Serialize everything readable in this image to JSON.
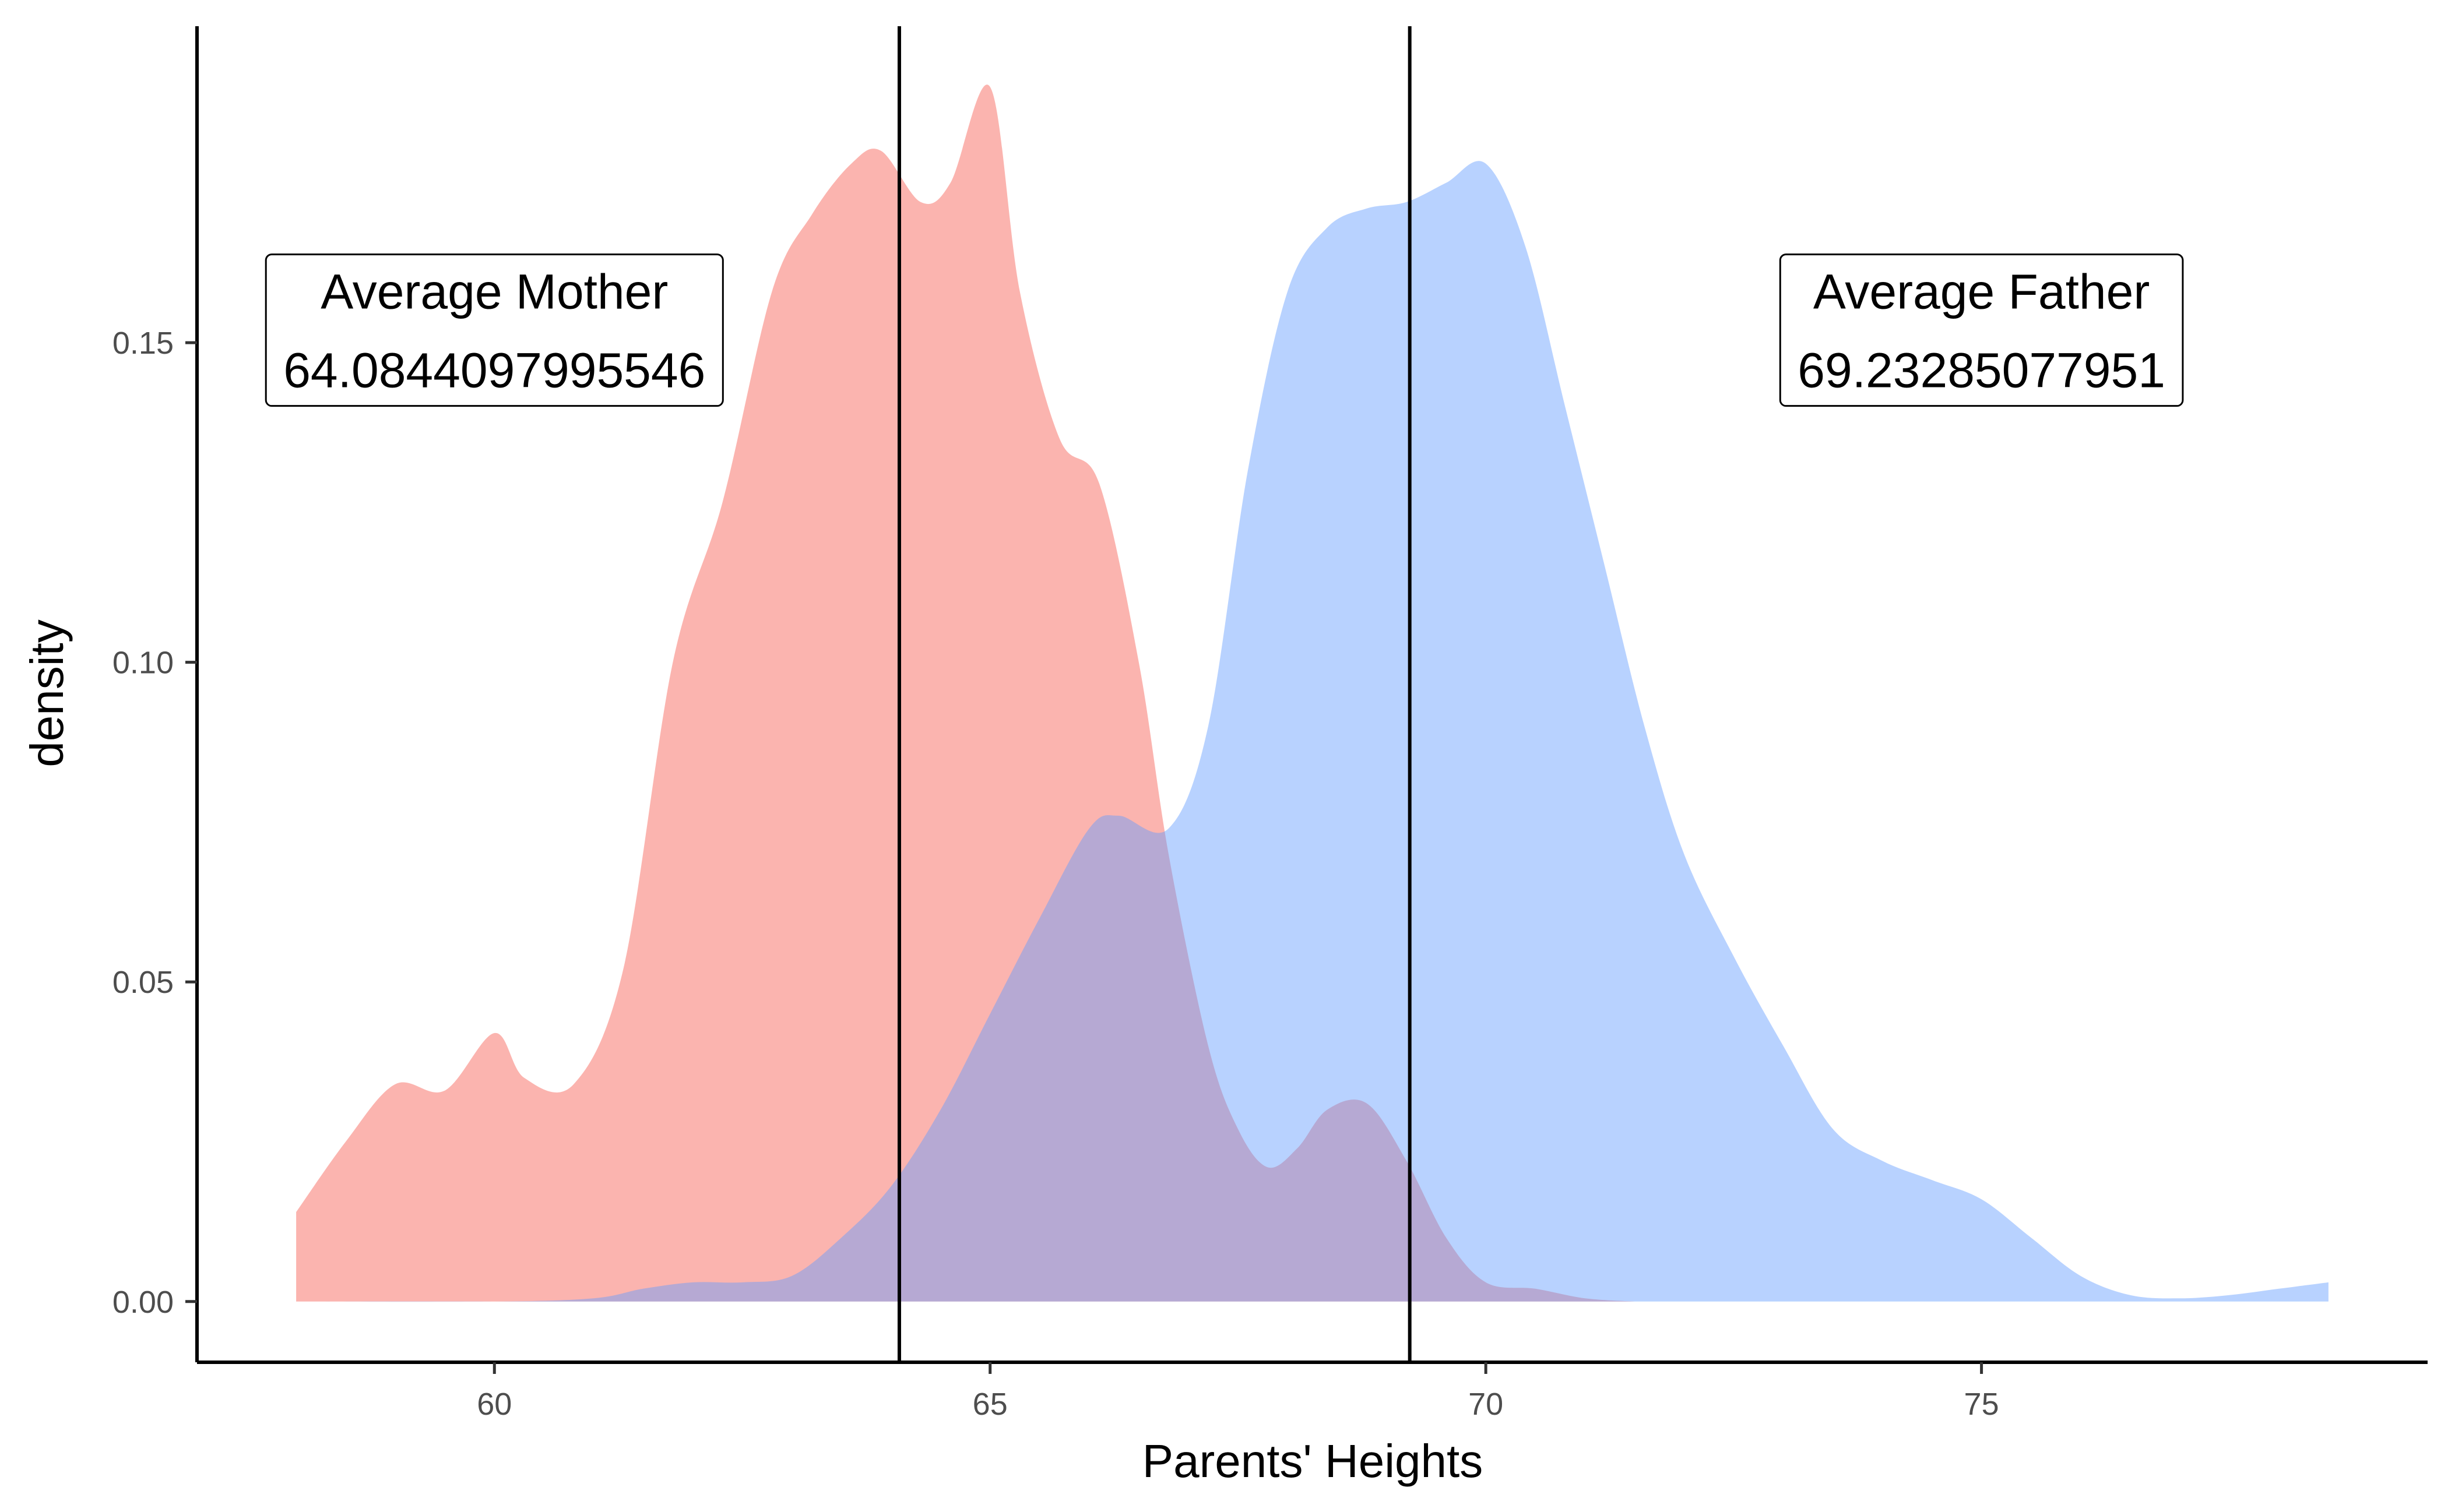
{
  "chart_data": {
    "type": "area",
    "title": "",
    "xlabel": "Parents' Heights",
    "ylabel": "density",
    "xlim": [
      57,
      79.5
    ],
    "ylim": [
      -0.0095,
      0.1995
    ],
    "x_ticks": [
      60,
      65,
      70,
      75
    ],
    "x_tick_labels": [
      "60",
      "65",
      "70",
      "75"
    ],
    "y_ticks": [
      0.0,
      0.05,
      0.1,
      0.15
    ],
    "y_tick_labels": [
      "0.00",
      "0.05",
      "0.10",
      "0.15"
    ],
    "grid": false,
    "legend": "none",
    "series": [
      {
        "color": "#F8766D",
        "fill_opacity": 0.55,
        "x": [
          58.0,
          58.5,
          59.0,
          59.5,
          60.0,
          60.3,
          60.8,
          61.3,
          61.8,
          62.3,
          62.8,
          63.2,
          63.6,
          63.9,
          64.3,
          64.6,
          65.0,
          65.3,
          65.7,
          66.1,
          66.5,
          66.8,
          67.2,
          67.5,
          67.8,
          68.1,
          68.4,
          68.8,
          69.2,
          69.6,
          70.0,
          70.5,
          71.0,
          71.5
        ],
        "y": [
          0.014,
          0.025,
          0.034,
          0.033,
          0.042,
          0.035,
          0.034,
          0.052,
          0.1,
          0.125,
          0.158,
          0.17,
          0.178,
          0.18,
          0.172,
          0.175,
          0.19,
          0.158,
          0.135,
          0.128,
          0.1,
          0.07,
          0.04,
          0.027,
          0.021,
          0.024,
          0.03,
          0.031,
          0.022,
          0.01,
          0.003,
          0.002,
          0.0005,
          0.0
        ]
      },
      {
        "color": "#619CFF",
        "fill_opacity": 0.45,
        "x": [
          58.0,
          60.0,
          61.0,
          61.5,
          62.0,
          62.5,
          63.0,
          63.5,
          64.0,
          64.5,
          65.0,
          65.5,
          66.0,
          66.3,
          66.8,
          67.2,
          67.6,
          68.0,
          68.4,
          68.8,
          69.2,
          69.6,
          70.0,
          70.4,
          70.8,
          71.2,
          71.6,
          72.0,
          72.5,
          73.0,
          73.5,
          74.0,
          74.5,
          75.0,
          75.5,
          76.0,
          76.5,
          77.0,
          77.5,
          78.0,
          78.5
        ],
        "y": [
          0.0,
          0.0,
          0.0005,
          0.002,
          0.003,
          0.003,
          0.004,
          0.01,
          0.018,
          0.03,
          0.045,
          0.06,
          0.074,
          0.076,
          0.074,
          0.09,
          0.13,
          0.158,
          0.168,
          0.171,
          0.172,
          0.175,
          0.178,
          0.165,
          0.14,
          0.115,
          0.09,
          0.07,
          0.054,
          0.04,
          0.027,
          0.022,
          0.019,
          0.016,
          0.01,
          0.004,
          0.001,
          0.0005,
          0.001,
          0.002,
          0.003
        ]
      }
    ],
    "vlines": [
      {
        "x": 64.0844097995546,
        "color": "#000000"
      },
      {
        "x": 69.23285077951,
        "color": "#000000"
      }
    ],
    "annotations": [
      {
        "x": 60.0,
        "y": 0.1535,
        "line1": "Average Mother",
        "line2": "64.0844097995546"
      },
      {
        "x": 75.0,
        "y": 0.1535,
        "line1": "Average Father",
        "line2": "69.23285077951"
      }
    ]
  }
}
